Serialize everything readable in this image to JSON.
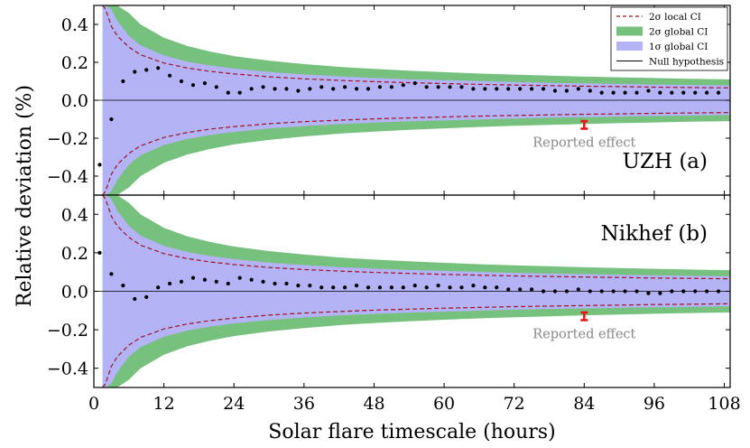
{
  "chart_data": {
    "type": "scatter",
    "xlabel": "Solar flare timescale (hours)",
    "ylabel": "Relative deviation (%)",
    "xlim": [
      0,
      109
    ],
    "ylim": [
      -0.5,
      0.5
    ],
    "x_ticks": [
      0,
      12,
      24,
      36,
      48,
      60,
      72,
      84,
      96,
      108
    ],
    "y_ticks": [
      -0.4,
      -0.2,
      0.0,
      0.2,
      0.4
    ],
    "x_tick_labels": [
      "0",
      "12",
      "24",
      "36",
      "48",
      "60",
      "72",
      "84",
      "96",
      "108"
    ],
    "y_tick_labels": [
      "−0.4",
      "−0.2",
      "0.0",
      "0.2",
      "0.4"
    ],
    "legend": {
      "placement": "top-right",
      "entries": [
        {
          "key": "local2",
          "label": "2σ local CI",
          "style": "dashed",
          "color": "#a0141e"
        },
        {
          "key": "global2",
          "label": "2σ global CI",
          "style": "fill",
          "color": "#77c17f"
        },
        {
          "key": "global1",
          "label": "1σ global CI",
          "style": "fill",
          "color": "#b3b3f6"
        },
        {
          "key": "null",
          "label": "Null hypothesis",
          "style": "line",
          "color": "#000000"
        }
      ]
    },
    "bands": {
      "x": [
        1.5,
        2,
        3,
        4,
        6,
        8,
        12,
        16,
        20,
        24,
        30,
        36,
        42,
        48,
        54,
        60,
        66,
        72,
        78,
        84,
        90,
        96,
        102,
        109
      ],
      "global1": [
        0.5,
        0.5,
        0.48,
        0.42,
        0.34,
        0.29,
        0.236,
        0.204,
        0.183,
        0.167,
        0.149,
        0.136,
        0.126,
        0.118,
        0.111,
        0.106,
        0.101,
        0.096,
        0.092,
        0.089,
        0.086,
        0.083,
        0.081,
        0.078
      ],
      "global2": [
        0.5,
        0.5,
        0.5,
        0.5,
        0.46,
        0.4,
        0.33,
        0.286,
        0.256,
        0.233,
        0.209,
        0.191,
        0.176,
        0.165,
        0.156,
        0.148,
        0.141,
        0.135,
        0.13,
        0.125,
        0.121,
        0.117,
        0.113,
        0.11
      ],
      "local2": [
        0.5,
        0.48,
        0.39,
        0.34,
        0.28,
        0.24,
        0.196,
        0.17,
        0.152,
        0.139,
        0.124,
        0.113,
        0.105,
        0.098,
        0.093,
        0.088,
        0.084,
        0.08,
        0.077,
        0.074,
        0.072,
        0.069,
        0.067,
        0.065
      ]
    },
    "reported_effect": {
      "label": "Reported effect",
      "x": 84,
      "y": -0.13,
      "err": 0.02,
      "color": "#ee1111"
    },
    "panels": [
      {
        "name": "UZH (a)",
        "points": {
          "x": [
            1,
            3,
            5,
            7,
            9,
            11,
            13,
            15,
            17,
            19,
            21,
            23,
            25,
            27,
            29,
            31,
            33,
            35,
            37,
            39,
            41,
            43,
            45,
            47,
            49,
            51,
            53,
            55,
            57,
            59,
            61,
            63,
            65,
            67,
            69,
            71,
            73,
            75,
            77,
            79,
            81,
            83,
            85,
            87,
            89,
            91,
            93,
            95,
            97,
            99,
            101,
            103,
            105,
            107
          ],
          "y": [
            -0.34,
            -0.1,
            0.1,
            0.15,
            0.16,
            0.17,
            0.13,
            0.1,
            0.08,
            0.09,
            0.07,
            0.04,
            0.04,
            0.06,
            0.07,
            0.06,
            0.06,
            0.05,
            0.06,
            0.07,
            0.06,
            0.07,
            0.06,
            0.06,
            0.07,
            0.07,
            0.08,
            0.09,
            0.07,
            0.07,
            0.07,
            0.07,
            0.06,
            0.06,
            0.06,
            0.06,
            0.06,
            0.06,
            0.06,
            0.05,
            0.05,
            0.06,
            0.05,
            0.04,
            0.04,
            0.04,
            0.04,
            0.05,
            0.04,
            0.04,
            0.04,
            0.04,
            0.04,
            0.04
          ]
        }
      },
      {
        "name": "Nikhef (b)",
        "points": {
          "x": [
            1,
            3,
            5,
            7,
            9,
            11,
            13,
            15,
            17,
            19,
            21,
            23,
            25,
            27,
            29,
            31,
            33,
            35,
            37,
            39,
            41,
            43,
            45,
            47,
            49,
            51,
            53,
            55,
            57,
            59,
            61,
            63,
            65,
            67,
            69,
            71,
            73,
            75,
            77,
            79,
            81,
            83,
            85,
            87,
            89,
            91,
            93,
            95,
            97,
            99,
            101,
            103,
            105,
            107
          ],
          "y": [
            0.2,
            0.09,
            0.03,
            -0.04,
            -0.03,
            0.02,
            0.04,
            0.05,
            0.07,
            0.06,
            0.05,
            0.04,
            0.07,
            0.06,
            0.05,
            0.04,
            0.04,
            0.03,
            0.03,
            0.02,
            0.02,
            0.02,
            0.03,
            0.02,
            0.02,
            0.02,
            0.02,
            0.03,
            0.02,
            0.03,
            0.02,
            0.02,
            0.03,
            0.02,
            0.02,
            0.01,
            0.01,
            0.01,
            0.0,
            0.0,
            0.0,
            0.01,
            0.0,
            0.0,
            0.0,
            0.0,
            0.0,
            -0.01,
            -0.01,
            0.0,
            0.0,
            0.0,
            0.0,
            0.0
          ]
        }
      }
    ]
  }
}
